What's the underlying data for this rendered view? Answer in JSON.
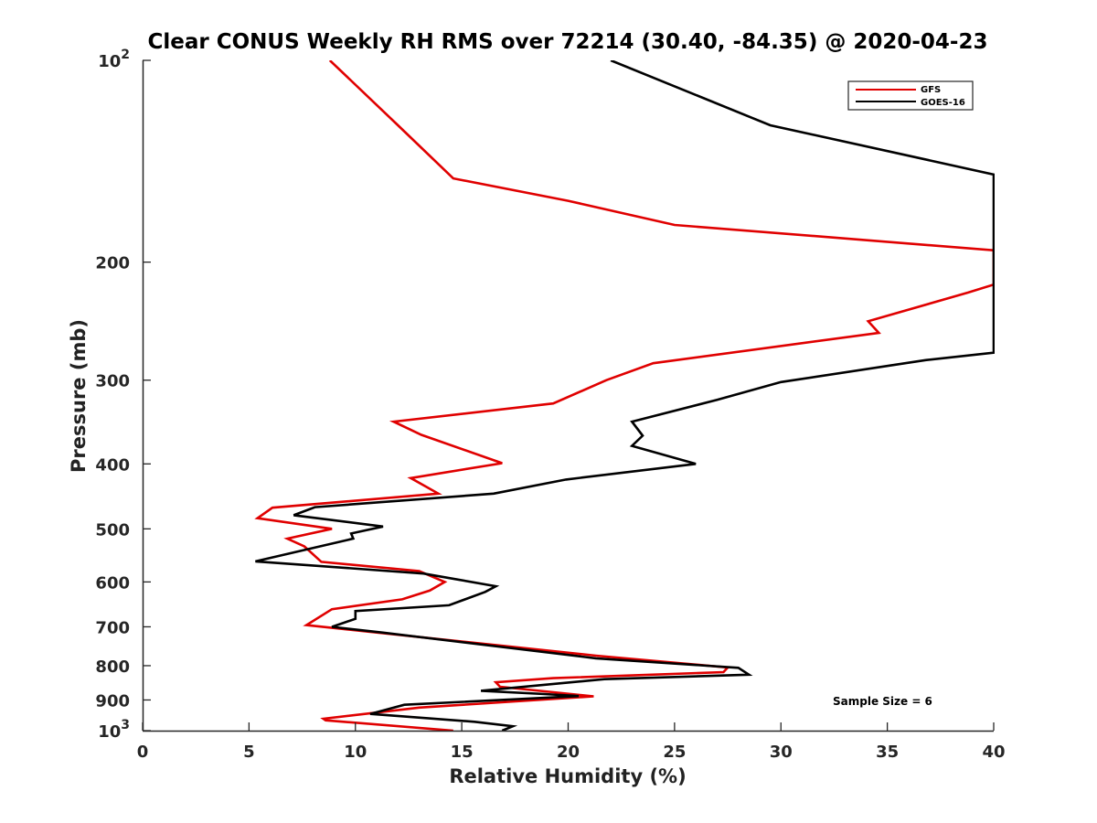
{
  "chart_data": {
    "type": "line",
    "title": "Clear CONUS Weekly RH RMS over 72214 (30.40, -84.35) @ 2020-04-23",
    "xlabel": "Relative Humidity (%)",
    "ylabel": "Pressure (mb)",
    "xlim": [
      0,
      40
    ],
    "ylim": [
      100,
      1000
    ],
    "yscale": "log",
    "y_reversed": true,
    "grid": false,
    "x_ticks": [
      0,
      5,
      10,
      15,
      20,
      25,
      30,
      35,
      40
    ],
    "y_ticks": [
      {
        "value": 100,
        "base": "10",
        "exp": "2"
      },
      {
        "value": 200,
        "label": "200"
      },
      {
        "value": 300,
        "label": "300"
      },
      {
        "value": 400,
        "label": "400"
      },
      {
        "value": 500,
        "label": "500"
      },
      {
        "value": 600,
        "label": "600"
      },
      {
        "value": 700,
        "label": "700"
      },
      {
        "value": 800,
        "label": "800"
      },
      {
        "value": 900,
        "label": "900"
      },
      {
        "value": 1000,
        "base": "10",
        "exp": "3"
      }
    ],
    "legend_position": "top-right",
    "annotation": "Sample Size = 6",
    "series": [
      {
        "name": "GFS",
        "color": "#e00000",
        "points": [
          [
            8.8,
            100
          ],
          [
            12.0,
            125
          ],
          [
            14.6,
            150
          ],
          [
            20,
            162
          ],
          [
            25,
            176
          ],
          [
            40,
            192
          ],
          [
            40,
            216
          ],
          [
            38.8,
            222
          ],
          [
            34.1,
            245
          ],
          [
            34.6,
            255
          ],
          [
            24,
            283
          ],
          [
            21.8,
            300
          ],
          [
            19.3,
            325
          ],
          [
            11.8,
            346
          ],
          [
            13.1,
            362
          ],
          [
            16.9,
            399
          ],
          [
            12.6,
            420
          ],
          [
            13.9,
            443
          ],
          [
            6.1,
            465
          ],
          [
            5.4,
            482
          ],
          [
            8.9,
            500
          ],
          [
            6.8,
            517
          ],
          [
            7.6,
            531
          ],
          [
            8.4,
            560
          ],
          [
            13.0,
            578
          ],
          [
            14.2,
            600
          ],
          [
            13.5,
            618
          ],
          [
            12.2,
            637
          ],
          [
            8.9,
            659
          ],
          [
            7.7,
            696
          ],
          [
            21.3,
            773
          ],
          [
            27.5,
            805
          ],
          [
            27.3,
            818
          ],
          [
            19.3,
            835
          ],
          [
            16.6,
            847
          ],
          [
            16.8,
            860
          ],
          [
            21.2,
            889
          ],
          [
            13.0,
            924
          ],
          [
            8.5,
            960
          ],
          [
            8.6,
            965
          ],
          [
            14.6,
            1000
          ]
        ]
      },
      {
        "name": "GOES-16",
        "color": "#000000",
        "points": [
          [
            22,
            100
          ],
          [
            29.5,
            125
          ],
          [
            40,
            148
          ],
          [
            40,
            273
          ],
          [
            36.8,
            280
          ],
          [
            30,
            302
          ],
          [
            27,
            321
          ],
          [
            23,
            346
          ],
          [
            23.5,
            363
          ],
          [
            23,
            376
          ],
          [
            26,
            400
          ],
          [
            19.9,
            422
          ],
          [
            16.5,
            443
          ],
          [
            8.1,
            464
          ],
          [
            7.1,
            477
          ],
          [
            11.3,
            496
          ],
          [
            9.8,
            508
          ],
          [
            9.9,
            517
          ],
          [
            5.3,
            559
          ],
          [
            13.2,
            583
          ],
          [
            16.6,
            609
          ],
          [
            16.1,
            621
          ],
          [
            14.4,
            650
          ],
          [
            10.0,
            663
          ],
          [
            10.0,
            681
          ],
          [
            8.9,
            700
          ],
          [
            11.3,
            714
          ],
          [
            21.3,
            780
          ],
          [
            28.0,
            806
          ],
          [
            28.5,
            825
          ],
          [
            21.7,
            838
          ],
          [
            15.9,
            872
          ],
          [
            18.9,
            882
          ],
          [
            20.5,
            888
          ],
          [
            12.3,
            915
          ],
          [
            10.7,
            944
          ],
          [
            15.6,
            970
          ],
          [
            17.4,
            985
          ],
          [
            16.9,
            1000
          ]
        ]
      }
    ]
  }
}
